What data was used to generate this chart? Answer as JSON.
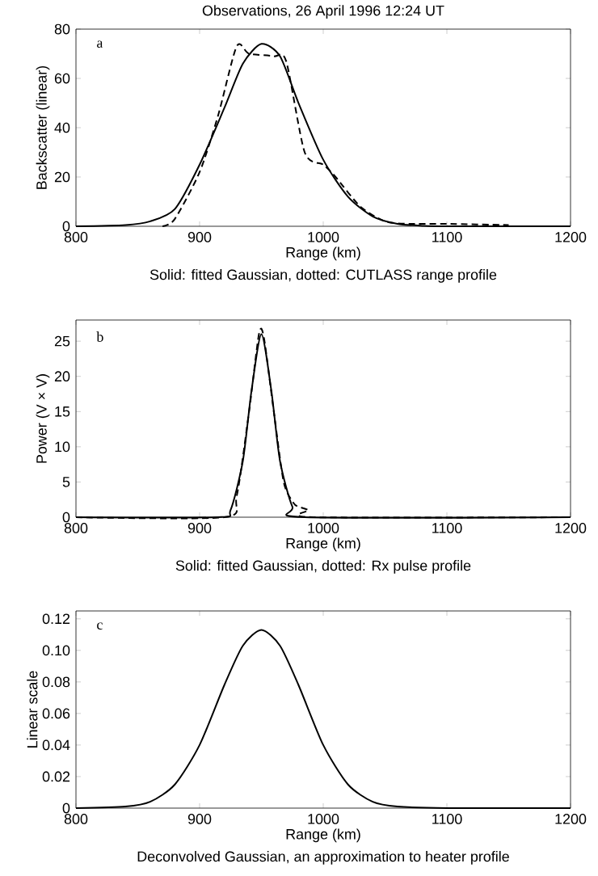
{
  "chart_data": [
    {
      "type": "line",
      "title": "Observations,   26 April 1996  12:24 UT",
      "xlabel": "Range (km)",
      "ylabel": "Backscatter (linear)",
      "annotations": [
        "a",
        "Solid: fitted Gaussian, dotted: CUTLASS range profile"
      ],
      "xlim": [
        800,
        1200
      ],
      "xticks": [
        800,
        900,
        1000,
        1100,
        1200
      ],
      "ylim": [
        0,
        80
      ],
      "yticks": [
        0,
        20,
        40,
        60,
        80
      ],
      "series": [
        {
          "color": "#000000",
          "line_style": "solid",
          "x": [
            800,
            840,
            860,
            880,
            900,
            920,
            935,
            950,
            965,
            980,
            1000,
            1020,
            1040,
            1060,
            1080,
            1100,
            1200
          ],
          "values": [
            0,
            0.5,
            2,
            7,
            25,
            48,
            66,
            74,
            69,
            50,
            27,
            12,
            4,
            1,
            0.2,
            0,
            0
          ]
        },
        {
          "color": "#000000",
          "line_style": "dashed",
          "x": [
            870,
            880,
            900,
            915,
            930,
            940,
            960,
            970,
            985,
            1000,
            1010,
            1030,
            1050,
            1070,
            1100,
            1150
          ],
          "values": [
            0,
            3,
            22,
            45,
            73,
            70,
            69,
            67,
            30,
            25,
            20,
            8,
            2,
            1,
            1,
            0.5
          ]
        }
      ]
    },
    {
      "type": "line",
      "xlabel": "Range (km)",
      "ylabel": "Power (V × V)",
      "annotations": [
        "b",
        "Solid: fitted Gaussian, dotted: Rx pulse profile"
      ],
      "xlim": [
        800,
        1200
      ],
      "xticks": [
        800,
        900,
        1000,
        1100,
        1200
      ],
      "ylim": [
        0,
        28
      ],
      "yticks": [
        0,
        5,
        10,
        15,
        20,
        25
      ],
      "series": [
        {
          "color": "#000000",
          "line_style": "solid",
          "x": [
            800,
            915,
            925,
            935,
            942,
            950,
            958,
            965,
            975,
            985,
            1200
          ],
          "values": [
            0,
            0,
            1,
            8,
            18,
            26,
            18,
            8,
            1.5,
            0,
            0
          ]
        },
        {
          "color": "#000000",
          "line_style": "dashed",
          "x": [
            800,
            920,
            930,
            940,
            948,
            952,
            960,
            968,
            976,
            980,
            988,
            992,
            1200
          ],
          "values": [
            0,
            0,
            3,
            15,
            26,
            25.5,
            15,
            5,
            2,
            1.5,
            1,
            0,
            0
          ]
        }
      ]
    },
    {
      "type": "line",
      "xlabel": "Range (km)",
      "ylabel": "Linear scale",
      "annotations": [
        "c",
        "Deconvolved Gaussian, an approximation to heater profile"
      ],
      "xlim": [
        800,
        1200
      ],
      "xticks": [
        800,
        900,
        1000,
        1100,
        1200
      ],
      "ylim": [
        0,
        0.125
      ],
      "yticks": [
        0,
        0.02,
        0.04,
        0.06,
        0.08,
        {
          "value": 0.1,
          "label": "0.10"
        },
        0.12
      ],
      "series": [
        {
          "color": "#000000",
          "line_style": "solid",
          "x": [
            800,
            840,
            860,
            880,
            900,
            920,
            935,
            950,
            965,
            980,
            1000,
            1020,
            1040,
            1060,
            1100,
            1200
          ],
          "values": [
            0,
            0.001,
            0.004,
            0.015,
            0.04,
            0.078,
            0.103,
            0.113,
            0.103,
            0.078,
            0.04,
            0.015,
            0.004,
            0.001,
            0,
            0
          ]
        }
      ]
    }
  ]
}
